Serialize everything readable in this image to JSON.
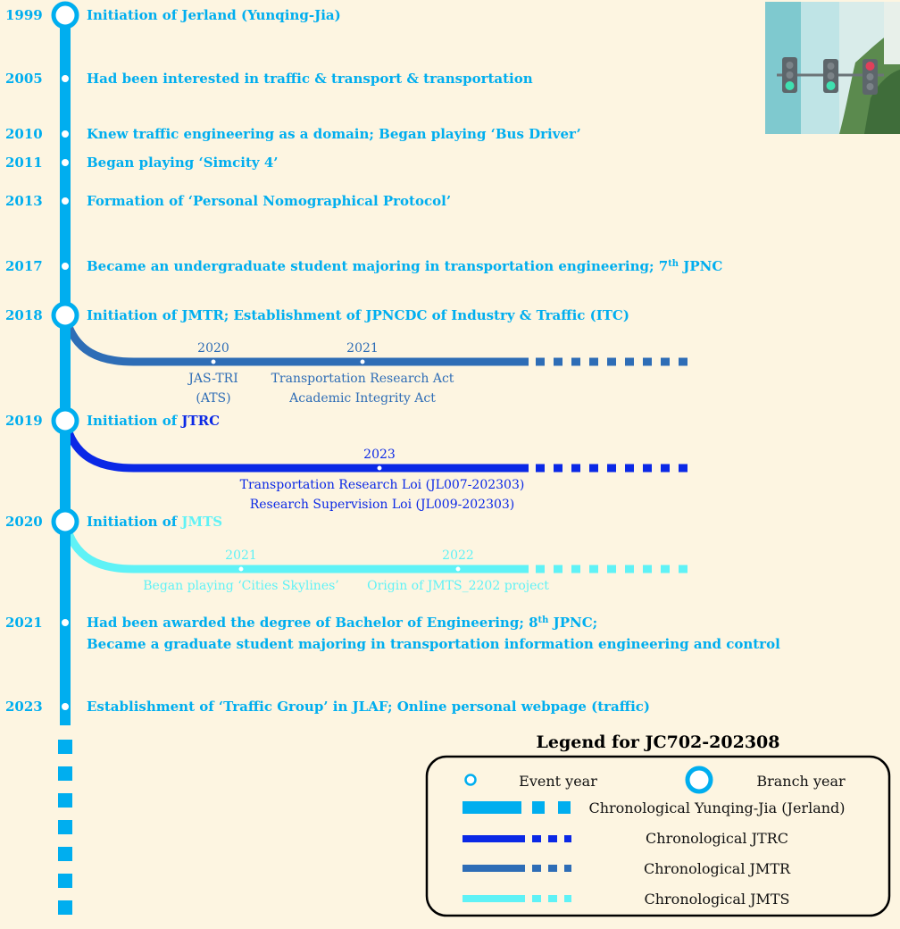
{
  "colors": {
    "main": "#00aeef",
    "jtrc": "#0a28e6",
    "jmtr": "#2e6db6",
    "jmts": "#5ff2f6",
    "background": "#fdf5e1"
  },
  "events": [
    {
      "year": "1999",
      "text": "Initiation of Jerland (Yunqing-Jia)",
      "marker": "branch"
    },
    {
      "year": "2005",
      "text": "Had been interested in traffic & transport & transportation",
      "marker": "event"
    },
    {
      "year": "2010",
      "text": "Knew traffic engineering as a domain; Began playing ‘Bus Driver’",
      "marker": "event"
    },
    {
      "year": "2011",
      "text": "Began playing ‘Simcity 4’",
      "marker": "event"
    },
    {
      "year": "2013",
      "text": "Formation of ‘Personal Nomographical Protocol’",
      "marker": "event"
    },
    {
      "year": "2017",
      "text": "Became an undergraduate student majoring in transportation engineering; 7",
      "sup": "th",
      "tail": " JPNC",
      "marker": "event"
    },
    {
      "year": "2018",
      "text": "Initiation of JMTR; Establishment of JPNCDC of Industry & Traffic (ITC)",
      "marker": "branch"
    },
    {
      "year": "2019",
      "text": "Initiation of ",
      "highlight": "JTRC",
      "marker": "branch"
    },
    {
      "year": "2020",
      "text": "Initiation of ",
      "highlight": "JMTS",
      "marker": "branch"
    },
    {
      "year": "2021",
      "text": "Had been awarded the degree of Bachelor of Engineering; 8",
      "sup": "th",
      "tail": " JPNC;",
      "text2": "Became a graduate student majoring in transportation information engineering and control",
      "marker": "event"
    },
    {
      "year": "2023",
      "text": "Establishment of ‘Traffic Group’ in JLAF; Online personal webpage (traffic)",
      "marker": "event"
    }
  ],
  "branches": {
    "jmtr": {
      "events": [
        {
          "year": "2020",
          "lines": [
            "JAS-TRI",
            "(ATS)"
          ]
        },
        {
          "year": "2021",
          "lines": [
            "Transportation Research Act",
            "Academic Integrity Act"
          ]
        }
      ]
    },
    "jtrc": {
      "events": [
        {
          "year": "2023",
          "lines": [
            "Transportation Research Loi (JL007-202303)",
            "Research Supervision Loi (JL009-202303)"
          ]
        }
      ]
    },
    "jmts": {
      "events": [
        {
          "year": "2021",
          "lines": [
            "Began playing ‘Cities Skylines’"
          ]
        },
        {
          "year": "2022",
          "lines": [
            "Origin of JMTS_2202 project"
          ]
        }
      ]
    }
  },
  "legend": {
    "title": "Legend for JC702-202308",
    "event_year": "Event year",
    "branch_year": "Branch year",
    "items": [
      "Chronological Yunqing-Jia (Jerland)",
      "Chronological JTRC",
      "Chronological JMTR",
      "Chronological JMTS"
    ]
  },
  "image": {
    "icon": "traffic-lights-icon"
  }
}
